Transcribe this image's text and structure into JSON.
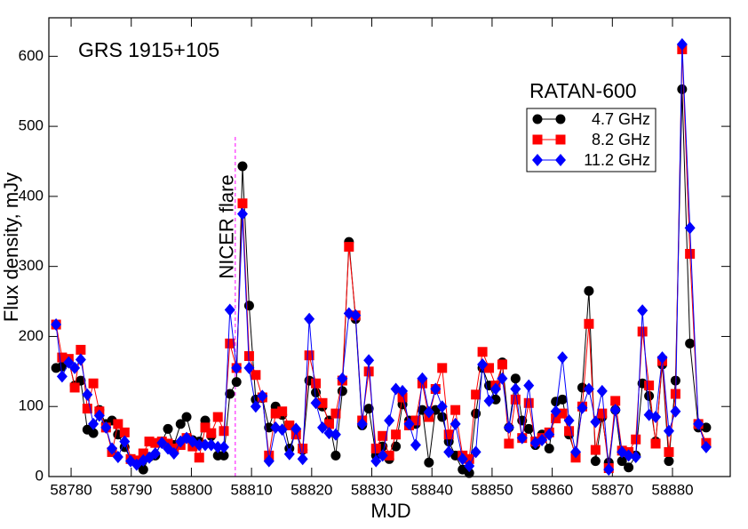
{
  "chart_data": {
    "type": "line",
    "title": "GRS 1915+105",
    "legend_title": "RATAN-600",
    "xlabel": "MJD",
    "ylabel": "Flux density, mJy",
    "annotation": {
      "text": "NICER flare",
      "x": 58807.3,
      "y_top": 487,
      "color": "#ff00ff"
    },
    "legend": "upper right",
    "title_color": "#ff0000",
    "xlim": [
      58776.3,
      58889.6
    ],
    "ylim": [
      0,
      655
    ],
    "xticks": [
      58780,
      58790,
      58800,
      58810,
      58820,
      58830,
      58840,
      58850,
      58860,
      58870,
      58880
    ],
    "yticks": [
      0,
      100,
      200,
      300,
      400,
      500,
      600
    ],
    "x": [
      58777.5,
      58778.5,
      58779.6,
      58780.6,
      58781.6,
      58782.7,
      58783.7,
      58784.7,
      58785.8,
      58786.8,
      58787.8,
      58788.9,
      58789.9,
      58790.9,
      58792.0,
      58793.0,
      58794.0,
      58795.1,
      58796.1,
      58797.1,
      58798.2,
      58799.2,
      58800.2,
      58801.3,
      58802.3,
      58803.3,
      58804.4,
      58805.4,
      58806.4,
      58807.5,
      58808.5,
      58809.6,
      58810.7,
      58811.8,
      58812.9,
      58814.0,
      58815.1,
      58816.3,
      58817.4,
      58818.5,
      58819.6,
      58820.7,
      58821.8,
      58822.9,
      58824.0,
      58825.1,
      58826.2,
      58827.3,
      58828.4,
      58829.5,
      58830.7,
      58831.8,
      58832.9,
      58834.0,
      58835.1,
      58836.2,
      58837.3,
      58838.4,
      58839.5,
      58840.6,
      58841.7,
      58842.8,
      58843.9,
      58845.1,
      58846.2,
      58847.3,
      58848.4,
      58849.5,
      58850.6,
      58851.7,
      58852.8,
      58853.9,
      58855.0,
      58856.1,
      58857.2,
      58858.3,
      58859.5,
      58860.6,
      58861.7,
      58862.8,
      58863.9,
      58865.0,
      58866.1,
      58867.2,
      58868.3,
      58869.4,
      58870.5,
      58871.6,
      58872.7,
      58873.9,
      58875.0,
      58876.1,
      58877.2,
      58878.3,
      58879.4,
      58880.5,
      58881.6,
      58882.9,
      58884.3,
      58885.6
    ],
    "series": [
      {
        "name": "4.7 GHz",
        "color": "#000000",
        "marker": "circle",
        "values": [
          155,
          157,
          165,
          130,
          137,
          67,
          62,
          95,
          75,
          80,
          60,
          42,
          25,
          20,
          10,
          28,
          30,
          50,
          68,
          45,
          75,
          85,
          52,
          50,
          80,
          58,
          30,
          30,
          118,
          135,
          443,
          244,
          110,
          112,
          70,
          100,
          88,
          40,
          65,
          38,
          137,
          120,
          100,
          80,
          30,
          122,
          335,
          225,
          73,
          97,
          30,
          43,
          25,
          43,
          103,
          80,
          75,
          95,
          20,
          95,
          85,
          50,
          30,
          10,
          5,
          90,
          155,
          130,
          110,
          163,
          70,
          140,
          80,
          68,
          45,
          60,
          40,
          107,
          110,
          60,
          30,
          127,
          265,
          22,
          85,
          20,
          95,
          22,
          13,
          30,
          133,
          115,
          50,
          160,
          22,
          137,
          553,
          190,
          70,
          70
        ]
      },
      {
        "name": "8.2 GHz",
        "color": "#ff0000",
        "marker": "square",
        "values": [
          217,
          170,
          168,
          127,
          181,
          97,
          133,
          93,
          70,
          35,
          75,
          63,
          25,
          23,
          33,
          50,
          48,
          50,
          47,
          40,
          45,
          55,
          43,
          27,
          70,
          62,
          85,
          65,
          190,
          155,
          390,
          172,
          145,
          113,
          30,
          90,
          93,
          73,
          60,
          40,
          173,
          133,
          105,
          75,
          90,
          137,
          328,
          230,
          80,
          150,
          40,
          58,
          30,
          60,
          113,
          73,
          80,
          133,
          85,
          125,
          155,
          60,
          95,
          30,
          25,
          117,
          178,
          155,
          130,
          160,
          47,
          110,
          55,
          105,
          50,
          55,
          63,
          83,
          90,
          65,
          27,
          100,
          218,
          38,
          90,
          12,
          108,
          37,
          35,
          53,
          207,
          130,
          47,
          165,
          35,
          118,
          610,
          318,
          75,
          48
        ]
      },
      {
        "name": "11.2 GHz",
        "color": "#0000ff",
        "marker": "diamond",
        "values": [
          217,
          143,
          163,
          155,
          167,
          117,
          75,
          87,
          70,
          40,
          28,
          50,
          22,
          17,
          23,
          27,
          33,
          48,
          40,
          33,
          50,
          55,
          50,
          45,
          45,
          45,
          42,
          42,
          238,
          155,
          375,
          155,
          100,
          115,
          22,
          70,
          67,
          32,
          68,
          25,
          225,
          105,
          70,
          62,
          60,
          140,
          233,
          230,
          75,
          166,
          22,
          30,
          80,
          125,
          122,
          75,
          45,
          140,
          92,
          125,
          100,
          35,
          75,
          25,
          15,
          35,
          160,
          108,
          125,
          140,
          70,
          125,
          55,
          130,
          48,
          52,
          60,
          93,
          170,
          80,
          35,
          98,
          125,
          78,
          122,
          10,
          95,
          35,
          30,
          28,
          237,
          88,
          85,
          170,
          65,
          93,
          617,
          355,
          75,
          42
        ]
      }
    ]
  }
}
